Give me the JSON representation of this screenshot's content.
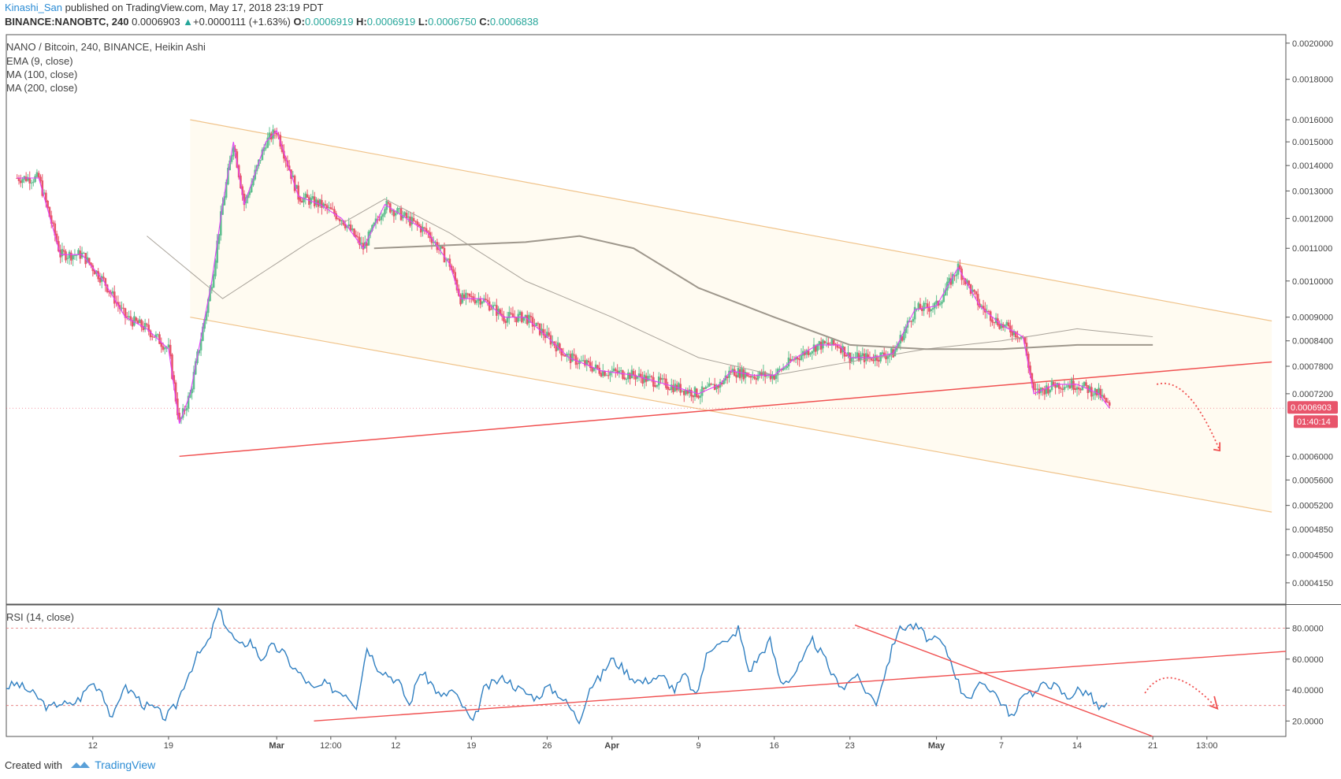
{
  "header": {
    "author": "Kinashi_San",
    "published": " published on TradingView.com, May 17, 2018 23:19 PDT",
    "symbol": "BINANCE:NANOBTC, 240",
    "price": "0.0006903",
    "change_arrow": "▲",
    "change": "+0.0000111 (+1.63%)",
    "o_label": "O:",
    "o": "0.0006919",
    "h_label": "H:",
    "h": "0.0006919",
    "l_label": "L:",
    "l": "0.0006750",
    "c_label": "C:",
    "c": "0.0006838"
  },
  "overlays": {
    "title": "NANO / Bitcoin, 240, BINANCE, Heikin Ashi",
    "ema": "EMA (9, close)",
    "ma100": "MA (100, close)",
    "ma200": "MA (200, close)"
  },
  "rsi_title": "RSI (14, close)",
  "price_badge": "0.0006903",
  "timer_badge": "01:40:14",
  "footer": {
    "created_with": "Created with",
    "brand": "TradingView"
  },
  "colors": {
    "up": "#5fbf8f",
    "down": "#e8556b",
    "ema": "#e040fb",
    "ma": "#a9a39a",
    "channel": "#f0c38a",
    "trend": "#f05050",
    "rsi": "#2f7fc1"
  },
  "chart_data": [
    {
      "type": "candlestick",
      "title": "NANO / Bitcoin, 240, BINANCE, Heikin Ashi",
      "y_scale": "log",
      "ylim": [
        0.00039,
        0.00205
      ],
      "y_ticks": [
        "0.0020000",
        "0.0018000",
        "0.0016000",
        "0.0015000",
        "0.0014000",
        "0.0013000",
        "0.0012000",
        "0.0011000",
        "0.0010000",
        "0.0009000",
        "0.0008400",
        "0.0007800",
        "0.0007200",
        "0.0006000",
        "0.0005600",
        "0.0005200",
        "0.0004850",
        "0.0004500",
        "0.0004150"
      ],
      "x_ticks": [
        "12",
        "19",
        "Mar",
        "12:00",
        "12",
        "19",
        "26",
        "Apr",
        "9",
        "16",
        "23",
        "May",
        "7",
        "14",
        "21",
        "13:00"
      ],
      "close_path": [
        [
          "Feb 5",
          0.00135
        ],
        [
          "Feb 7",
          0.00135
        ],
        [
          "Feb 9",
          0.00108
        ],
        [
          "Feb 11",
          0.00108
        ],
        [
          "Feb 13",
          0.001
        ],
        [
          "Feb 15",
          0.0009
        ],
        [
          "Feb 17",
          0.00087
        ],
        [
          "Feb 19",
          0.00082
        ],
        [
          "Feb 20",
          0.00066
        ],
        [
          "Feb 21",
          0.00072
        ],
        [
          "Feb 23",
          0.001
        ],
        [
          "Feb 24",
          0.00125
        ],
        [
          "Feb 25",
          0.0015
        ],
        [
          "Feb 26",
          0.00125
        ],
        [
          "Feb 28",
          0.0015
        ],
        [
          "Mar 1",
          0.00155
        ],
        [
          "Mar 3",
          0.00128
        ],
        [
          "Mar 5",
          0.00125
        ],
        [
          "Mar 7",
          0.0012
        ],
        [
          "Mar 9",
          0.0011
        ],
        [
          "Mar 11",
          0.00125
        ],
        [
          "Mar 13",
          0.0012
        ],
        [
          "Mar 15",
          0.00115
        ],
        [
          "Mar 17",
          0.00105
        ],
        [
          "Mar 18",
          0.00095
        ],
        [
          "Mar 20",
          0.00095
        ],
        [
          "Mar 22",
          0.0009
        ],
        [
          "Mar 24",
          0.0009
        ],
        [
          "Mar 26",
          0.00085
        ],
        [
          "Mar 28",
          0.0008
        ],
        [
          "Mar 31",
          0.00077
        ],
        [
          "Apr 3",
          0.00076
        ],
        [
          "Apr 6",
          0.00074
        ],
        [
          "Apr 9",
          0.00072
        ],
        [
          "Apr 11",
          0.00074
        ],
        [
          "Apr 12",
          0.00077
        ],
        [
          "Apr 14",
          0.00076
        ],
        [
          "Apr 16",
          0.00076
        ],
        [
          "Apr 18",
          0.0008
        ],
        [
          "Apr 20",
          0.00083
        ],
        [
          "Apr 22",
          0.00083
        ],
        [
          "Apr 23",
          0.0008
        ],
        [
          "Apr 25",
          0.0008
        ],
        [
          "Apr 27",
          0.00081
        ],
        [
          "Apr 29",
          0.00092
        ],
        [
          "May 1",
          0.00093
        ],
        [
          "May 3",
          0.00104
        ],
        [
          "May 5",
          0.00093
        ],
        [
          "May 7",
          0.00088
        ],
        [
          "May 9",
          0.00085
        ],
        [
          "May 10",
          0.00072
        ],
        [
          "May 12",
          0.00074
        ],
        [
          "May 14",
          0.00074
        ],
        [
          "May 16",
          0.00072
        ],
        [
          "May 17",
          0.00069
        ]
      ],
      "ema_9": "follows close",
      "ma_100_path": [
        [
          "Feb 17",
          0.00114
        ],
        [
          "Feb 24",
          0.00095
        ],
        [
          "Mar 4",
          0.00112
        ],
        [
          "Mar 11",
          0.00127
        ],
        [
          "Mar 17",
          0.00115
        ],
        [
          "Mar 24",
          0.001
        ],
        [
          "Apr 1",
          0.0009
        ],
        [
          "Apr 9",
          0.0008
        ],
        [
          "Apr 16",
          0.00076
        ],
        [
          "Apr 23",
          0.00079
        ],
        [
          "Apr 30",
          0.00082
        ],
        [
          "May 7",
          0.00084
        ],
        [
          "May 14",
          0.00087
        ],
        [
          "May 21",
          0.00085
        ]
      ],
      "ma_200_path": [
        [
          "Mar 10",
          0.0011
        ],
        [
          "Mar 17",
          0.00111
        ],
        [
          "Mar 24",
          0.00112
        ],
        [
          "Mar 29",
          0.00114
        ],
        [
          "Apr 3",
          0.0011
        ],
        [
          "Apr 9",
          0.00098
        ],
        [
          "Apr 16",
          0.0009
        ],
        [
          "Apr 23",
          0.00083
        ],
        [
          "Apr 30",
          0.00082
        ],
        [
          "May 7",
          0.00082
        ],
        [
          "May 14",
          0.00083
        ],
        [
          "May 21",
          0.00083
        ]
      ],
      "channel_upper": [
        [
          "Feb 21",
          0.0016
        ],
        [
          "Jun 1",
          0.00089
        ]
      ],
      "channel_lower": [
        [
          "Feb 21",
          0.0009
        ],
        [
          "Jun 1",
          0.00051
        ]
      ],
      "support_line": [
        [
          "Feb 20",
          0.0006
        ],
        [
          "Jun 1",
          0.00079
        ]
      ],
      "last_price": 0.0006903,
      "projection": "dotted arrow pointing down"
    },
    {
      "type": "line",
      "title": "RSI (14, close)",
      "ylim": [
        10,
        95
      ],
      "y_ticks": [
        "80.0000",
        "60.0000",
        "40.0000",
        "20.0000"
      ],
      "bands": [
        80,
        30
      ],
      "values": [
        42,
        44,
        40,
        35,
        28,
        32,
        30,
        35,
        45,
        40,
        20,
        42,
        38,
        30,
        28,
        22,
        30,
        48,
        62,
        70,
        92,
        78,
        68,
        72,
        60,
        68,
        65,
        55,
        48,
        40,
        44,
        40,
        38,
        30,
        68,
        55,
        50,
        45,
        30,
        52,
        45,
        35,
        40,
        30,
        18,
        40,
        45,
        48,
        42,
        38,
        35,
        42,
        38,
        30,
        20,
        42,
        48,
        60,
        55,
        48,
        45,
        48,
        48,
        40,
        50,
        35,
        62,
        72,
        70,
        80,
        52,
        62,
        72,
        45,
        48,
        58,
        72,
        62,
        48,
        42,
        50,
        40,
        32,
        55,
        78,
        82,
        80,
        72,
        72,
        60,
        40,
        35,
        45,
        40,
        30,
        22,
        40,
        38,
        45,
        42,
        35,
        40,
        38,
        28,
        30
      ],
      "trendline_rising": [
        [
          29,
          20
        ],
        [
          100,
          65
        ]
      ],
      "trendline_falling": [
        [
          80,
          82
        ],
        [
          95,
          10
        ]
      ]
    }
  ]
}
